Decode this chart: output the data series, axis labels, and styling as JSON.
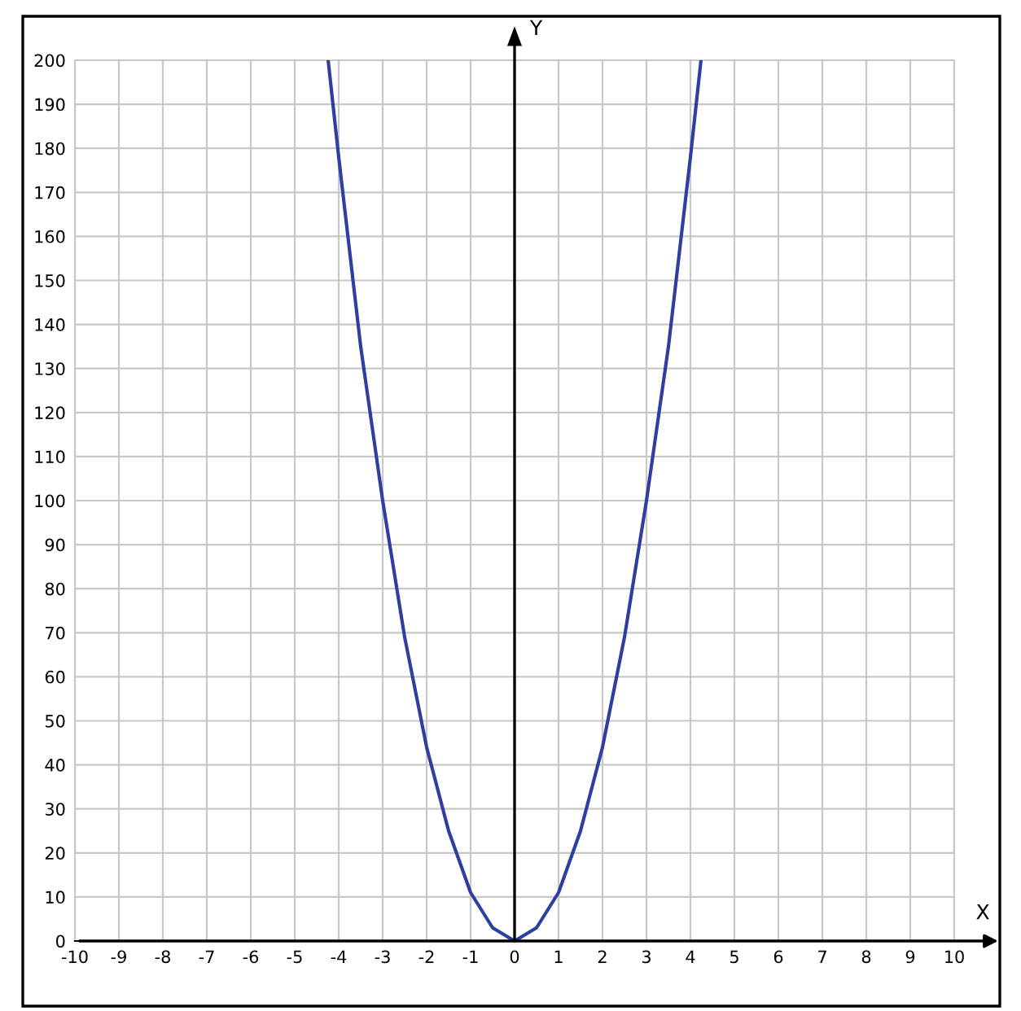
{
  "chart_data": {
    "type": "line",
    "xlabel": "X",
    "ylabel": "Y",
    "x": [
      -4.24,
      -4,
      -3.5,
      -3,
      -2.5,
      -2,
      -1.5,
      -1,
      -0.5,
      0,
      0.5,
      1,
      1.5,
      2,
      2.5,
      3,
      3.5,
      4,
      4.24
    ],
    "series": [
      {
        "color": "#2e3fa0",
        "values": [
          200,
          178,
          135,
          100,
          69,
          44,
          25,
          11,
          3,
          0,
          3,
          11,
          25,
          44,
          69,
          100,
          135,
          178,
          200
        ]
      }
    ],
    "xlim": [
      -10,
      10
    ],
    "ylim": [
      0,
      200
    ],
    "xticks": [
      -10,
      -9,
      -8,
      -7,
      -6,
      -5,
      -4,
      -3,
      -2,
      -1,
      0,
      1,
      2,
      3,
      4,
      5,
      6,
      7,
      8,
      9,
      10
    ],
    "yticks": [
      0,
      10,
      20,
      30,
      40,
      50,
      60,
      70,
      80,
      90,
      100,
      110,
      120,
      130,
      140,
      150,
      160,
      170,
      180,
      190,
      200
    ],
    "grid": true,
    "legend": false,
    "marker": "none",
    "line_style": "solid"
  }
}
